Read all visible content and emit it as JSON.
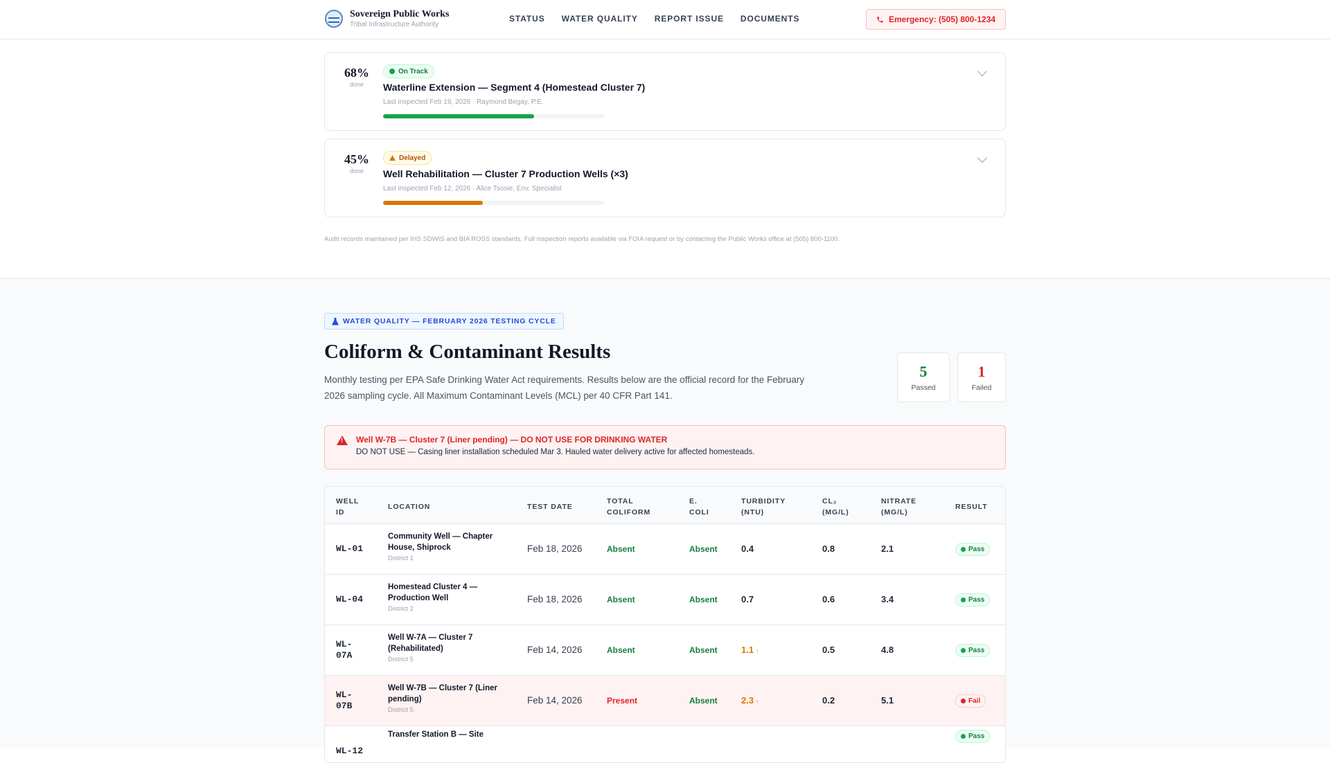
{
  "header": {
    "brand_name": "Sovereign Public Works",
    "brand_sub": "Tribal Infrastructure Authority",
    "nav": [
      "STATUS",
      "WATER QUALITY",
      "REPORT ISSUE",
      "DOCUMENTS"
    ],
    "emergency_label": "Emergency: (505) 800-1234"
  },
  "projects": [
    {
      "percent": "68%",
      "percent_value": 68,
      "percent_label": "done",
      "status": "On Track",
      "title": "Waterline Extension — Segment 4 (Homestead Cluster 7)",
      "meta": "Last inspected Feb 19, 2026 · Raymond Begay, P.E.",
      "bar_color": "#16a34a"
    },
    {
      "percent": "45%",
      "percent_value": 45,
      "percent_label": "done",
      "status": "Delayed",
      "title": "Well Rehabilitation — Cluster 7 Production Wells (×3)",
      "meta": "Last inspected Feb 12, 2026 · Alice Tsosie, Env. Specialist",
      "bar_color": "#d97706"
    }
  ],
  "audit_note": "Audit records maintained per IHS SDWIS and BIA ROSS standards. Full inspection reports available via FOIA request or by contacting the Public Works office at (505) 800-1100.",
  "water_quality": {
    "tag": "WATER QUALITY — FEBRUARY 2026 TESTING CYCLE",
    "title": "Coliform & Contaminant Results",
    "description": "Monthly testing per EPA Safe Drinking Water Act requirements. Results below are the official record for the February 2026 sampling cycle. All Maximum Contaminant Levels (MCL) per 40 CFR Part 141.",
    "stats": {
      "passed": "5",
      "passed_label": "Passed",
      "failed": "1",
      "failed_label": "Failed"
    },
    "alert": {
      "title": "Well W-7B — Cluster 7 (Liner pending) — DO NOT USE FOR DRINKING WATER",
      "body": "DO NOT USE — Casing liner installation scheduled Mar 3. Hauled water delivery active for affected homesteads."
    },
    "columns": [
      "Well\nID",
      "Location",
      "Test Date",
      "Total\nColiform",
      "E.\nColi",
      "Turbidity\n(NTU)",
      "CL₂\n(mg/L)",
      "Nitrate\n(mg/L)",
      "Result"
    ],
    "rows": [
      {
        "id": "WL-01",
        "location": "Community Well — Chapter House, Shiprock",
        "district": "District 1",
        "date": "Feb 18, 2026",
        "total_coliform": "Absent",
        "ecoli": "Absent",
        "turbidity": "0.4",
        "turbidity_flag": "",
        "cl2": "0.8",
        "nitrate": "2.1",
        "result": "Pass"
      },
      {
        "id": "WL-04",
        "location": "Homestead Cluster 4 — Production Well",
        "district": "District 2",
        "date": "Feb 18, 2026",
        "total_coliform": "Absent",
        "ecoli": "Absent",
        "turbidity": "0.7",
        "turbidity_flag": "",
        "cl2": "0.6",
        "nitrate": "3.4",
        "result": "Pass"
      },
      {
        "id": "WL-07A",
        "location": "Well W-7A — Cluster 7 (Rehabilitated)",
        "district": "District 5",
        "date": "Feb 14, 2026",
        "total_coliform": "Absent",
        "ecoli": "Absent",
        "turbidity": "1.1",
        "turbidity_flag": "↑",
        "cl2": "0.5",
        "nitrate": "4.8",
        "result": "Pass"
      },
      {
        "id": "WL-07B",
        "location": "Well W-7B — Cluster 7 (Liner pending)",
        "district": "District 5",
        "date": "Feb 14, 2026",
        "total_coliform": "Present",
        "ecoli": "Absent",
        "turbidity": "2.3",
        "turbidity_flag": "↑",
        "cl2": "0.2",
        "nitrate": "5.1",
        "result": "Fail"
      },
      {
        "id": "WL-12",
        "location": "Transfer Station B — Site",
        "district": "",
        "date": "",
        "total_coliform": "",
        "ecoli": "",
        "turbidity": "",
        "turbidity_flag": "",
        "cl2": "",
        "nitrate": "",
        "result": "Pass"
      }
    ]
  },
  "colors": {
    "pass": "#15803d",
    "fail": "#dc2626",
    "warn": "#d97706",
    "accent": "#1d4ed8"
  }
}
